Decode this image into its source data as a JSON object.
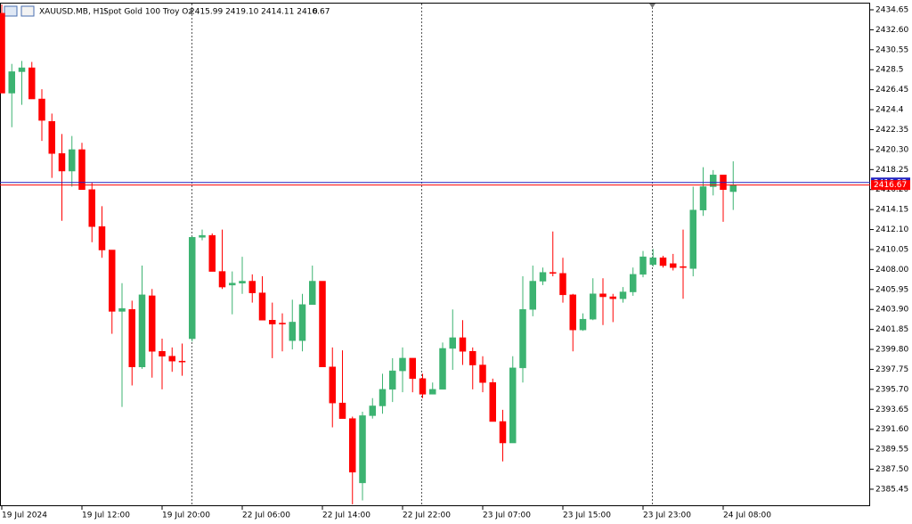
{
  "chart_data": {
    "type": "candlestick",
    "header": {
      "symbol": "XAUUSD.MB, H1:",
      "description": "Spot Gold 100 Troy Oz",
      "ohlc": "2415.99 2419.10 2414.11 2416.67",
      "volume": 0
    },
    "categories": [
      "19 Jul 2024",
      null,
      null,
      null,
      null,
      null,
      null,
      null,
      "19 Jul 12:00",
      null,
      null,
      null,
      null,
      null,
      null,
      null,
      "19 Jul 20:00",
      null,
      null,
      null,
      null,
      null,
      null,
      null,
      "22 Jul 06:00",
      null,
      null,
      null,
      null,
      null,
      null,
      null,
      "22 Jul 14:00",
      null,
      null,
      null,
      null,
      null,
      null,
      null,
      "22 Jul 22:00",
      null,
      null,
      null,
      null,
      null,
      null,
      null,
      "23 Jul 07:00",
      null,
      null,
      null,
      null,
      null,
      null,
      null,
      "23 Jul 15:00",
      null,
      null,
      null,
      null,
      null,
      null,
      null,
      "23 Jul 23:00",
      null,
      null,
      null,
      null,
      null,
      null,
      null,
      "24 Jul 08:00",
      null
    ],
    "open": [
      2434.3,
      2426.1,
      2428.3,
      2428.7,
      2425.5,
      2423.2,
      2419.9,
      2418.1,
      2420.3,
      2416.2,
      2412.4,
      2410.0,
      2403.7,
      2403.9,
      2398.0,
      2405.3,
      2399.6,
      2399.1,
      2398.6,
      2400.9,
      2411.3,
      2411.5,
      2407.8,
      2406.4,
      2406.6,
      2406.8,
      2405.6,
      2402.8,
      2402.5,
      2400.7,
      2400.7,
      2404.4,
      2406.8,
      2398.0,
      2394.3,
      2392.7,
      2386.1,
      2393.0,
      2394.0,
      2395.7,
      2397.6,
      2398.9,
      2396.8,
      2395.2,
      2395.7,
      2399.9,
      2401.0,
      2399.6,
      2398.2,
      2396.4,
      2392.4,
      2390.2,
      2397.9,
      2403.9,
      2406.8,
      2407.7,
      2407.6,
      2405.4,
      2401.8,
      2402.9,
      2405.5,
      2405.2,
      2405.0,
      2405.7,
      2407.5,
      2408.5,
      2409.2,
      2408.6,
      2408.3,
      2408.1,
      2414.1,
      2416.5,
      2417.7,
      2415.99
    ],
    "high": [
      2435.2,
      2429.1,
      2429.4,
      2429.3,
      2426.5,
      2424.0,
      2421.9,
      2421.7,
      2421.0,
      2416.9,
      2414.5,
      2410.0,
      2406.6,
      2404.8,
      2408.4,
      2406.0,
      2400.9,
      2400.0,
      2400.4,
      2411.4,
      2412.1,
      2411.7,
      2412.1,
      2407.8,
      2409.3,
      2407.5,
      2407.3,
      2404.6,
      2403.5,
      2404.9,
      2405.5,
      2408.4,
      2406.8,
      2400.0,
      2399.7,
      2392.9,
      2393.4,
      2394.8,
      2397.3,
      2398.9,
      2400.0,
      2398.9,
      2397.3,
      2396.4,
      2400.5,
      2403.9,
      2402.8,
      2400.0,
      2399.1,
      2396.8,
      2393.6,
      2399.1,
      2407.3,
      2408.4,
      2408.2,
      2411.9,
      2409.2,
      2405.5,
      2403.5,
      2407.1,
      2407.1,
      2405.5,
      2406.2,
      2408.2,
      2409.9,
      2410.1,
      2409.4,
      2409.6,
      2412.1,
      2416.5,
      2418.5,
      2418.2,
      2417.7,
      2419.1
    ],
    "low": [
      2426.1,
      2422.6,
      2424.9,
      2425.5,
      2421.2,
      2417.4,
      2413.0,
      2416.5,
      2416.2,
      2410.8,
      2409.2,
      2401.4,
      2393.9,
      2396.1,
      2397.8,
      2396.9,
      2395.7,
      2397.5,
      2397.1,
      2400.6,
      2411.0,
      2407.8,
      2406.0,
      2403.4,
      2405.5,
      2404.6,
      2402.8,
      2398.9,
      2399.6,
      2399.8,
      2399.6,
      2404.4,
      2398.0,
      2391.8,
      2392.7,
      2383.9,
      2384.3,
      2392.7,
      2393.2,
      2394.4,
      2395.4,
      2395.4,
      2394.8,
      2395.2,
      2395.7,
      2397.7,
      2398.2,
      2395.7,
      2395.4,
      2392.4,
      2388.3,
      2390.2,
      2396.4,
      2403.2,
      2406.4,
      2407.3,
      2404.6,
      2399.6,
      2401.7,
      2402.8,
      2402.3,
      2402.6,
      2404.6,
      2405.3,
      2407.2,
      2408.3,
      2408.2,
      2407.9,
      2405.0,
      2407.3,
      2413.5,
      2415.6,
      2412.9,
      2414.11
    ],
    "close": [
      2426.1,
      2428.3,
      2428.7,
      2425.5,
      2423.3,
      2419.9,
      2418.1,
      2420.3,
      2416.2,
      2412.4,
      2410.0,
      2403.7,
      2404.0,
      2398.0,
      2405.4,
      2399.6,
      2399.1,
      2398.6,
      2398.5,
      2411.3,
      2411.5,
      2407.8,
      2406.2,
      2406.6,
      2406.8,
      2405.6,
      2402.8,
      2402.4,
      2402.4,
      2402.6,
      2404.4,
      2406.8,
      2398.0,
      2394.3,
      2392.7,
      2387.2,
      2393.0,
      2394.0,
      2395.7,
      2397.6,
      2398.9,
      2396.8,
      2395.2,
      2395.7,
      2399.9,
      2401.0,
      2399.6,
      2398.2,
      2396.4,
      2392.4,
      2390.2,
      2397.9,
      2403.9,
      2406.8,
      2407.7,
      2407.6,
      2405.4,
      2401.8,
      2402.9,
      2405.5,
      2405.2,
      2405.0,
      2405.7,
      2407.5,
      2409.3,
      2409.2,
      2408.4,
      2408.2,
      2408.2,
      2414.1,
      2416.5,
      2417.7,
      2416.2,
      2416.67
    ],
    "up_color": "#3cb371",
    "down_color": "#ff0000",
    "ylim": [
      2383.71,
      2435.29
    ],
    "yticks": [
      2434.65,
      {
        "value": 2432.6,
        "label": "2432.60"
      },
      2430.55,
      2428.5,
      2426.45,
      2424.4,
      2422.35,
      {
        "value": 2420.3,
        "label": "2420.30"
      },
      2418.25,
      {
        "value": 2416.2,
        "label": "2416.20"
      },
      2414.15,
      {
        "value": 2412.1,
        "label": "2412.10"
      },
      2410.05,
      {
        "value": 2408,
        "label": "2408.00"
      },
      2405.95,
      {
        "value": 2403.9,
        "label": "2403.90"
      },
      2401.85,
      {
        "value": 2399.8,
        "label": "2399.80"
      },
      2397.75,
      {
        "value": 2395.7,
        "label": "2395.70"
      },
      2393.65,
      {
        "value": 2391.6,
        "label": "2391.60"
      },
      2389.55,
      {
        "value": 2387.5,
        "label": "2387.50"
      },
      2385.45
    ],
    "ask_line": {
      "value": 2416.93,
      "color": "#2020c0"
    },
    "bid_line": {
      "value": 2416.67,
      "color": "#ff0000"
    }
  }
}
